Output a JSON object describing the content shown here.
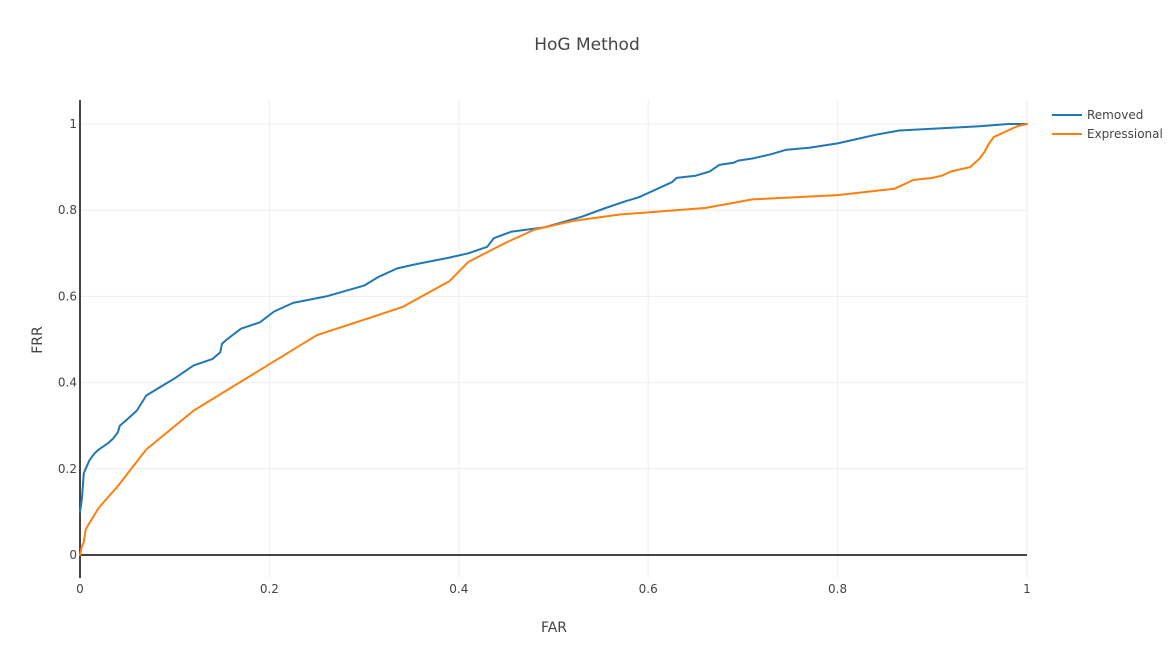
{
  "chart_data": {
    "type": "line",
    "title": "HoG Method",
    "xlabel": "FAR",
    "ylabel": "FRR",
    "xlim": [
      0,
      1
    ],
    "ylim": [
      0,
      1
    ],
    "xticks": [
      "0",
      "0.2",
      "0.4",
      "0.6",
      "0.8",
      "1"
    ],
    "yticks": [
      "0",
      "0.2",
      "0.4",
      "0.6",
      "0.8",
      "1"
    ],
    "grid": true,
    "legend_position": "top-right",
    "series": [
      {
        "name": "Removed",
        "color": "#1f77b4",
        "x": [
          0,
          0.002,
          0.004,
          0.006,
          0.01,
          0.015,
          0.02,
          0.03,
          0.035,
          0.04,
          0.042,
          0.05,
          0.06,
          0.07,
          0.085,
          0.1,
          0.12,
          0.14,
          0.148,
          0.15,
          0.155,
          0.17,
          0.19,
          0.205,
          0.225,
          0.26,
          0.3,
          0.315,
          0.335,
          0.355,
          0.39,
          0.41,
          0.43,
          0.437,
          0.455,
          0.49,
          0.53,
          0.555,
          0.575,
          0.59,
          0.6,
          0.61,
          0.625,
          0.63,
          0.65,
          0.665,
          0.675,
          0.69,
          0.695,
          0.71,
          0.73,
          0.745,
          0.77,
          0.8,
          0.82,
          0.84,
          0.865,
          0.91,
          0.95,
          0.98,
          1.0
        ],
        "y": [
          0.1,
          0.13,
          0.19,
          0.2,
          0.22,
          0.235,
          0.245,
          0.26,
          0.27,
          0.285,
          0.3,
          0.315,
          0.335,
          0.37,
          0.39,
          0.41,
          0.44,
          0.455,
          0.47,
          0.49,
          0.5,
          0.525,
          0.54,
          0.565,
          0.585,
          0.6,
          0.625,
          0.645,
          0.665,
          0.675,
          0.69,
          0.7,
          0.715,
          0.735,
          0.75,
          0.76,
          0.785,
          0.805,
          0.82,
          0.83,
          0.84,
          0.85,
          0.865,
          0.875,
          0.88,
          0.89,
          0.905,
          0.91,
          0.915,
          0.92,
          0.93,
          0.94,
          0.945,
          0.955,
          0.965,
          0.975,
          0.985,
          0.99,
          0.995,
          1.0,
          1.0
        ]
      },
      {
        "name": "Expressional",
        "color": "#ff7f0e",
        "x": [
          0,
          0.002,
          0.004,
          0.006,
          0.02,
          0.04,
          0.07,
          0.12,
          0.25,
          0.34,
          0.39,
          0.41,
          0.45,
          0.48,
          0.52,
          0.57,
          0.66,
          0.71,
          0.8,
          0.82,
          0.86,
          0.88,
          0.9,
          0.91,
          0.92,
          0.94,
          0.95,
          0.955,
          0.96,
          0.965,
          0.97,
          0.98,
          0.985,
          0.99,
          1.0
        ],
        "y": [
          0,
          0.02,
          0.03,
          0.06,
          0.11,
          0.16,
          0.245,
          0.335,
          0.51,
          0.575,
          0.635,
          0.68,
          0.725,
          0.755,
          0.775,
          0.79,
          0.805,
          0.825,
          0.835,
          0.84,
          0.85,
          0.87,
          0.875,
          0.88,
          0.89,
          0.9,
          0.92,
          0.935,
          0.955,
          0.97,
          0.975,
          0.985,
          0.99,
          0.995,
          1.0
        ]
      }
    ]
  }
}
